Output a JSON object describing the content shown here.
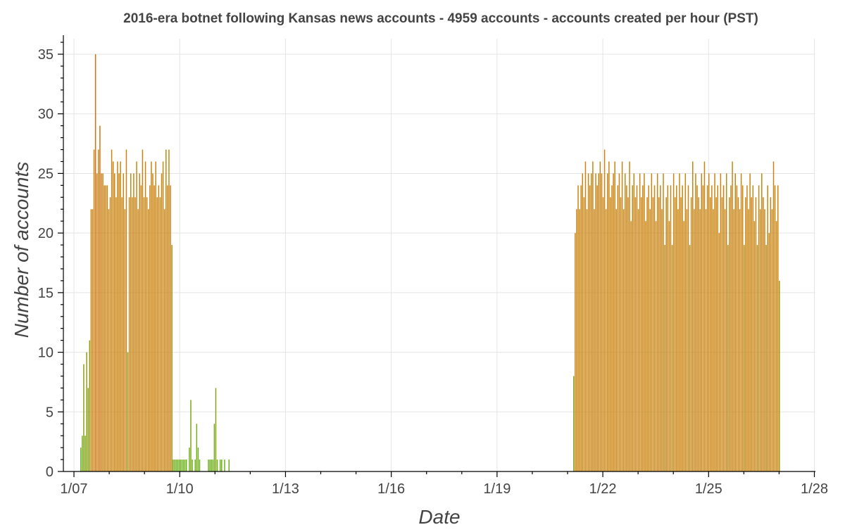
{
  "chart_data": {
    "type": "bar",
    "title": "2016-era botnet following Kansas news accounts - 4959 accounts - accounts created per hour (PST)",
    "xlabel": "Date",
    "ylabel": "Number of accounts",
    "x_unit": "days since 1/07 00:00 (hour bins)",
    "xlim": [
      -0.3,
      21.03
    ],
    "ylim": [
      0,
      36.3
    ],
    "x_ticks": [
      {
        "value": 0,
        "label": "1/07"
      },
      {
        "value": 3,
        "label": "1/10"
      },
      {
        "value": 6,
        "label": "1/13"
      },
      {
        "value": 9,
        "label": "1/16"
      },
      {
        "value": 12,
        "label": "1/19"
      },
      {
        "value": 15,
        "label": "1/22"
      },
      {
        "value": 18,
        "label": "1/25"
      },
      {
        "value": 21,
        "label": "1/28"
      }
    ],
    "y_ticks": [
      0,
      5,
      10,
      15,
      20,
      25,
      30,
      35
    ],
    "grid": true,
    "colors": {
      "low": "#6cb21b",
      "high": "#e06a10",
      "mid": "#c98310"
    },
    "clusters": [
      {
        "name": "early",
        "start": 0.18,
        "values": [
          2,
          3,
          9,
          3,
          10,
          7,
          11,
          22,
          22,
          27,
          35,
          25,
          27,
          29,
          25,
          25,
          24,
          24,
          24,
          22,
          23,
          27,
          26,
          25,
          23,
          26,
          25,
          26,
          23,
          25,
          22,
          27,
          10,
          23,
          25,
          23,
          25,
          23,
          26,
          22,
          25,
          24,
          27,
          23,
          26,
          23,
          22,
          24,
          26,
          25,
          24,
          26,
          23,
          24,
          23,
          25,
          26,
          22,
          27,
          24,
          27,
          24,
          19
        ]
      },
      {
        "name": "gap",
        "start": 2.8,
        "values": [
          1,
          1,
          1,
          1,
          1,
          1,
          1,
          1,
          1,
          1,
          0,
          2,
          6,
          1,
          0,
          1,
          4,
          2,
          1,
          0,
          0,
          0,
          0,
          0,
          1,
          1,
          1,
          1,
          4,
          7,
          1,
          0,
          1,
          1,
          0,
          1,
          0,
          0,
          1
        ]
      },
      {
        "name": "late",
        "start": 14.16,
        "values": [
          8,
          20,
          22,
          24,
          22,
          24,
          25,
          23,
          26,
          22,
          25,
          24,
          25,
          26,
          22,
          25,
          24,
          25,
          26,
          25,
          23,
          27,
          22,
          25,
          26,
          23,
          24,
          25,
          26,
          22,
          24,
          25,
          23,
          26,
          22,
          25,
          24,
          23,
          26,
          21,
          24,
          25,
          23,
          24,
          22,
          25,
          23,
          24,
          25,
          21,
          23,
          24,
          22,
          25,
          23,
          24,
          21,
          25,
          23,
          24,
          22,
          25,
          19,
          23,
          24,
          21,
          24,
          19,
          25,
          23,
          24,
          22,
          25,
          23,
          24,
          21,
          25,
          22,
          24,
          19,
          23,
          26,
          22,
          25,
          24,
          23,
          22,
          25,
          24,
          26,
          22,
          24,
          25,
          23,
          24,
          22,
          25,
          23,
          24,
          20,
          25,
          23,
          24,
          22,
          25,
          19,
          23,
          24,
          26,
          22,
          25,
          24,
          23,
          22,
          25,
          24,
          19,
          23,
          24,
          22,
          25,
          23,
          24,
          21,
          23,
          19,
          24,
          22,
          25,
          23,
          22,
          19,
          24,
          20,
          23,
          22,
          26,
          24,
          21,
          24,
          16
        ]
      }
    ]
  }
}
